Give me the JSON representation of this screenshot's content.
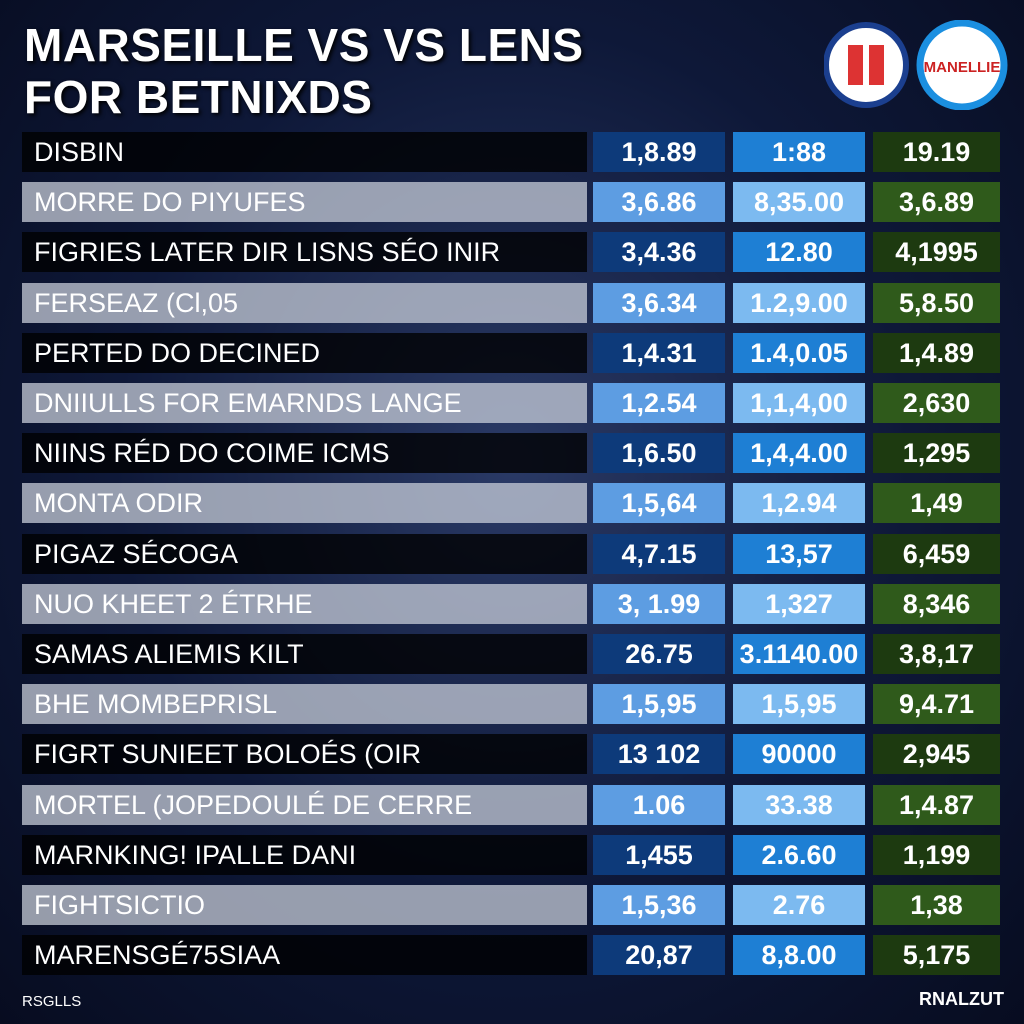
{
  "header": {
    "title": [
      "MARSEILLE VS VS LENS",
      "FOR BETNIXDS"
    ],
    "logo_text": "MANELLIE"
  },
  "table": {
    "rows": [
      [
        "DISBIN",
        "1,8.89",
        "1:88",
        "19.19"
      ],
      [
        "MORRE DO PIYUFES",
        "3,6.86",
        "8,35.00",
        "3,6.89"
      ],
      [
        "FIGRIES LATER DIR LISNS SÉO INIR",
        "3,4.36",
        "12.80",
        "4,1995"
      ],
      [
        "FERSEAZ (Cl,05",
        "3,6.34",
        "1.2,9.00",
        "5,8.50"
      ],
      [
        "PERTED DO DECINED",
        "1,4.31",
        "1.4,0.05",
        "1,4.89"
      ],
      [
        "DNIIULLS FOR EMARNDS LANGE",
        "1,2.54",
        "1,1,4,00",
        "2,630"
      ],
      [
        "NIINS RÉD DO COIME ICMS",
        "1,6.50",
        "1,4,4.00",
        "1,295"
      ],
      [
        "MONTA ODIR",
        "1,5,64",
        "1,2.94",
        "1,49"
      ],
      [
        "PIGAZ SÉCOGA",
        "4,7.15",
        "13,57",
        "6,459"
      ],
      [
        "NUO KHEET 2 ÉTRHE",
        "3, 1.99",
        "1,327",
        "8,346"
      ],
      [
        "SAMAS ALIEMIS KILT",
        "26.75",
        "3.1140.00",
        "3,8,17"
      ],
      [
        "BHE MOMBEPRISL",
        "1,5,95",
        "1,5,95",
        "9,4.71"
      ],
      [
        "FIGRT SUNIEET BOLOÉS (OIR",
        "13 102",
        "90000",
        "2,945"
      ],
      [
        "MORTEL (JOPEDOULÉ DE CERRE",
        "1.06",
        "33.38",
        "1,4.87"
      ],
      [
        "MARNKING! IPALLE DANI",
        "1,455",
        "2.6.60",
        "1,199"
      ],
      [
        "FIGHTSICTIO",
        "1,5,36",
        "2.76",
        "1,38"
      ],
      [
        "MARENSGÉ75SIAA",
        "20,87",
        "8,8.00",
        "5,175"
      ]
    ]
  },
  "footer": {
    "left": "RSGLLS",
    "right": "RNALZUT"
  }
}
